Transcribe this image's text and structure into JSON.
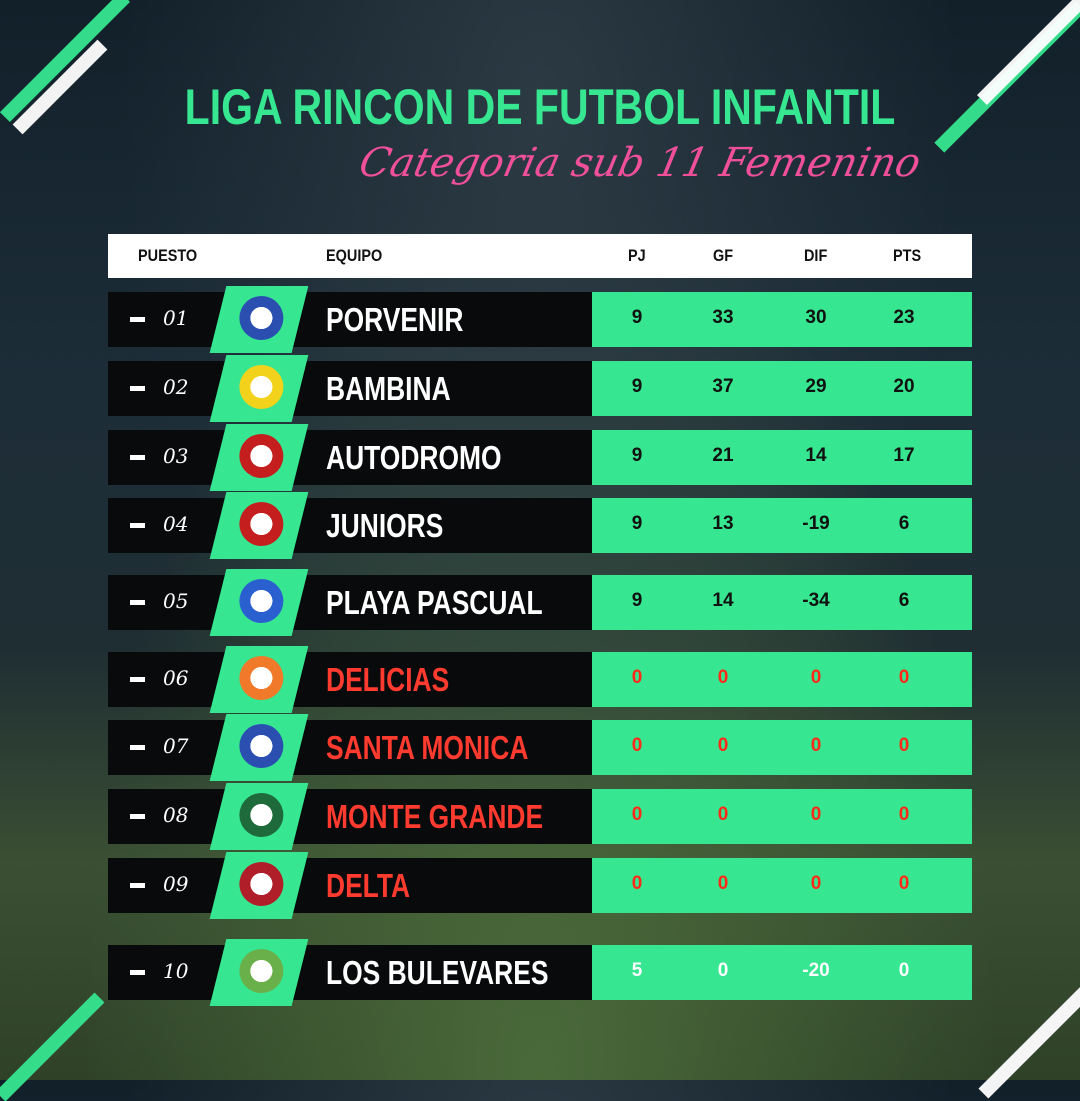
{
  "title": "LIGA RINCON DE FUTBOL INFANTIL",
  "subtitle": "Categoria sub 11 Femenino",
  "colors": {
    "accent": "#36e690",
    "subtitle": "#f0509a",
    "pending": "#ff3b30"
  },
  "header": {
    "puesto": "PUESTO",
    "equipo": "EQUIPO",
    "pj": "PJ",
    "gf": "GF",
    "dif": "DIF",
    "pts": "PTS"
  },
  "rows": [
    {
      "pos": "01",
      "team": "PORVENIR",
      "pj": "9",
      "gf": "33",
      "dif": "30",
      "pts": "23",
      "logo": "porvenir-del-plata-crest"
    },
    {
      "pos": "02",
      "team": "BAMBINA",
      "pj": "9",
      "gf": "37",
      "dif": "29",
      "pts": "20",
      "logo": "bambina-crest"
    },
    {
      "pos": "03",
      "team": "AUTODROMO",
      "pj": "9",
      "gf": "21",
      "dif": "14",
      "pts": "17",
      "logo": "autodromo-crest"
    },
    {
      "pos": "04",
      "team": "JUNIORS",
      "pj": "9",
      "gf": "13",
      "dif": "-19",
      "pts": "6",
      "logo": "juniors-crest"
    },
    {
      "pos": "05",
      "team": "PLAYA PASCUAL",
      "pj": "9",
      "gf": "14",
      "dif": "-34",
      "pts": "6",
      "logo": "playa-pascual-crest"
    },
    {
      "pos": "06",
      "team": "DELICIAS",
      "pj": "0",
      "gf": "0",
      "dif": "0",
      "pts": "0",
      "logo": "delicias-crest"
    },
    {
      "pos": "07",
      "team": "SANTA MONICA",
      "pj": "0",
      "gf": "0",
      "dif": "0",
      "pts": "0",
      "logo": "santa-monica-crest"
    },
    {
      "pos": "08",
      "team": "MONTE GRANDE",
      "pj": "0",
      "gf": "0",
      "dif": "0",
      "pts": "0",
      "logo": "monte-grande-crest"
    },
    {
      "pos": "09",
      "team": "DELTA",
      "pj": "0",
      "gf": "0",
      "dif": "0",
      "pts": "0",
      "logo": "delta-crest"
    },
    {
      "pos": "10",
      "team": "LOS BULEVARES",
      "pj": "5",
      "gf": "0",
      "dif": "-20",
      "pts": "0",
      "logo": "los-bulevares-crest"
    }
  ]
}
